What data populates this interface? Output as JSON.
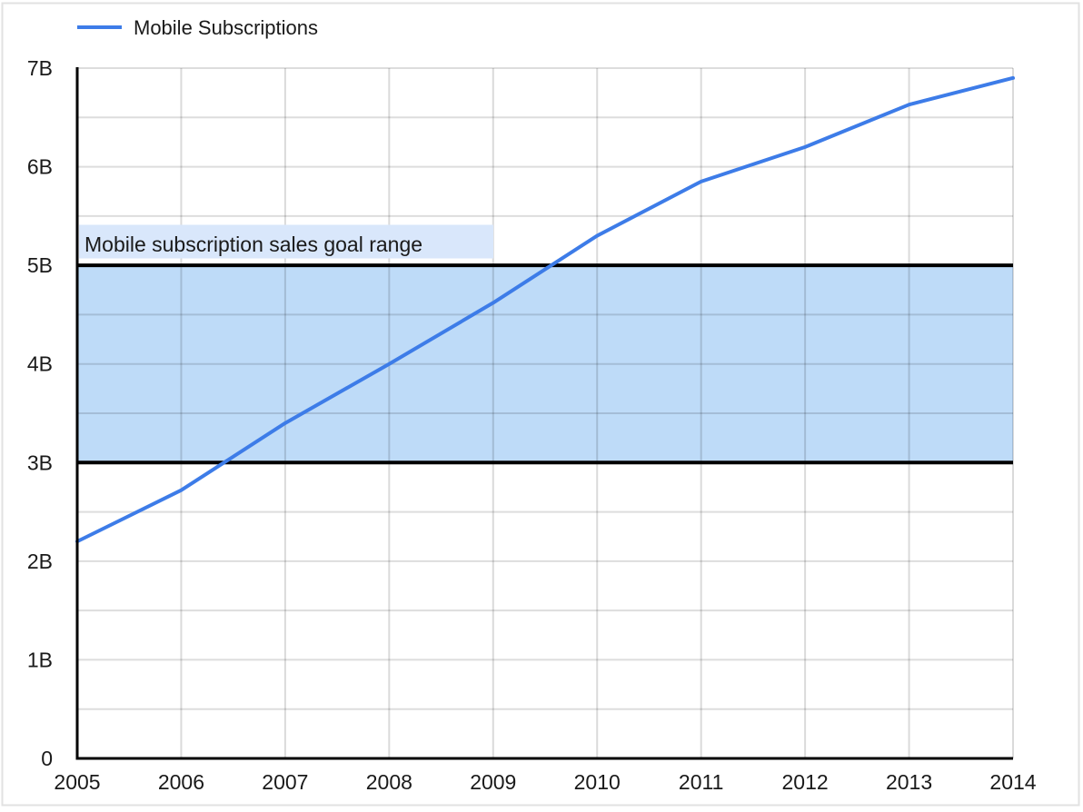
{
  "chart_data": {
    "type": "line",
    "title": "",
    "xlabel": "",
    "ylabel": "",
    "legend": {
      "position": "top-left",
      "entries": [
        "Mobile Subscriptions"
      ]
    },
    "categories": [
      "2005",
      "2006",
      "2007",
      "2008",
      "2009",
      "2010",
      "2011",
      "2012",
      "2013",
      "2014"
    ],
    "series": [
      {
        "name": "Mobile Subscriptions",
        "color": "#3d7ce8",
        "values_billions": [
          2.2,
          2.72,
          3.4,
          4.0,
          4.62,
          5.3,
          5.85,
          6.2,
          6.63,
          6.9
        ]
      }
    ],
    "ylim_billions": [
      0,
      7
    ],
    "ytick_labels": [
      "0",
      "1B",
      "2B",
      "3B",
      "4B",
      "5B",
      "6B",
      "7B"
    ],
    "y_minor_step_billions": 0.5,
    "grid": true,
    "band": {
      "from_billions": 3,
      "to_billions": 5,
      "label": "Mobile subscription sales goal range",
      "fill": "#bedbf8",
      "border_color": "#000000",
      "label_bg": "#d9e7fb",
      "label_color": "#1a1a1a"
    },
    "colors": {
      "axis": "#000000",
      "text": "#1a1a1a",
      "gridline": "#dedede",
      "canvas_border": "#e2e2e2"
    }
  }
}
